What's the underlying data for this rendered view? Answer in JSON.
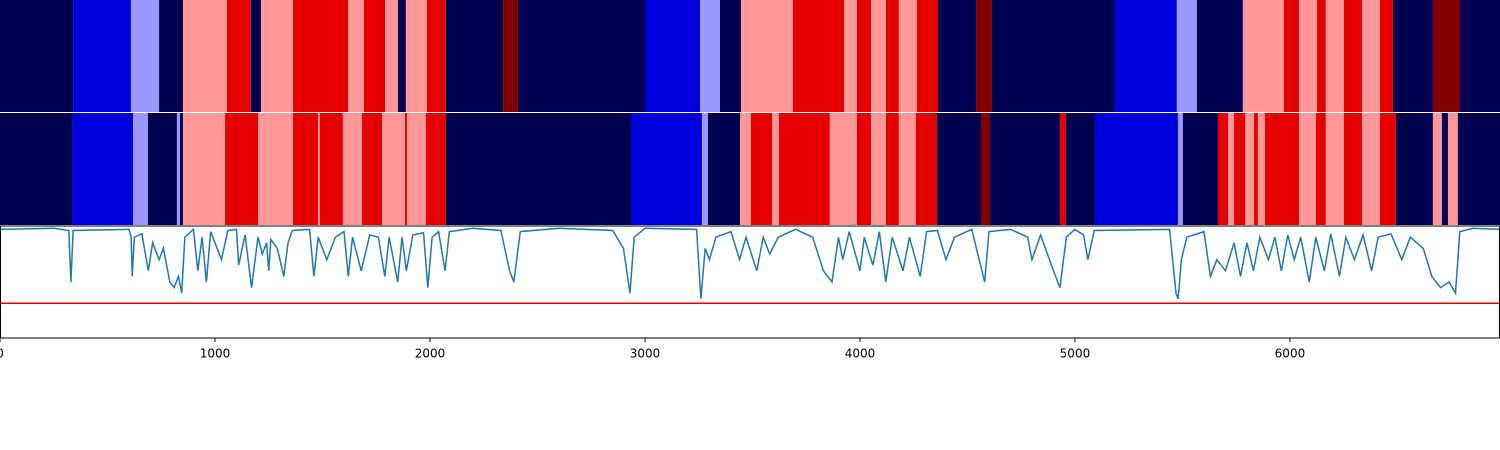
{
  "chart_data": {
    "type": "segmentation",
    "xlim": [
      0,
      6977
    ],
    "xticks": [
      0,
      1000,
      2000,
      3000,
      4000,
      5000,
      6000
    ],
    "state_colors": [
      "#000050",
      "#0000dd",
      "#9999ff",
      "#ff9999",
      "#e50000",
      "#800000"
    ],
    "strips": [
      {
        "boundaries": [
          0,
          340,
          609,
          740,
          851,
          1056,
          1167,
          1214,
          1363,
          1619,
          1693,
          1791,
          1851,
          1888,
          1986,
          2074,
          2340,
          2409,
          3000,
          3256,
          3349,
          3447,
          3688,
          3926,
          3986,
          4051,
          4121,
          4181,
          4265,
          4363,
          4540,
          4614,
          5186,
          5474,
          5567,
          5781,
          5972,
          6042,
          6126,
          6167,
          6251,
          6335,
          6419,
          6479,
          6665,
          6791,
          6977
        ],
        "states": [
          0,
          1,
          2,
          0,
          3,
          4,
          0,
          3,
          4,
          3,
          4,
          3,
          0,
          3,
          4,
          0,
          5,
          0,
          1,
          2,
          0,
          3,
          4,
          3,
          4,
          3,
          4,
          3,
          4,
          0,
          5,
          0,
          1,
          2,
          0,
          3,
          4,
          3,
          4,
          3,
          4,
          3,
          4,
          0,
          5,
          0
        ]
      },
      {
        "boundaries": [
          0,
          335,
          619,
          688,
          823,
          837,
          851,
          1047,
          1200,
          1363,
          1479,
          1488,
          1595,
          1684,
          1777,
          1884,
          1893,
          1981,
          2074,
          2935,
          3265,
          3293,
          3442,
          3493,
          3591,
          3623,
          3860,
          3986,
          4051,
          4121,
          4181,
          4260,
          4358,
          4563,
          4605,
          4930,
          4958,
          5093,
          5479,
          5502,
          5665,
          5712,
          5740,
          5791,
          5833,
          5851,
          5884,
          6042,
          6121,
          6167,
          6251,
          6335,
          6419,
          6493,
          6665,
          6707,
          6735,
          6781,
          6977
        ],
        "states": [
          0,
          1,
          2,
          0,
          2,
          0,
          3,
          4,
          3,
          4,
          3,
          4,
          3,
          4,
          3,
          4,
          3,
          4,
          0,
          1,
          2,
          0,
          3,
          4,
          3,
          4,
          3,
          4,
          3,
          4,
          3,
          4,
          0,
          5,
          0,
          4,
          0,
          1,
          2,
          0,
          4,
          3,
          4,
          3,
          4,
          3,
          4,
          3,
          4,
          3,
          4,
          3,
          4,
          0,
          3,
          0,
          3,
          0
        ]
      }
    ],
    "line": {
      "color": "#1f77b4",
      "ylim": [
        0,
        1
      ],
      "threshold": 0.31,
      "threshold_color": "#e00000",
      "x": [
        0,
        250,
        320,
        330,
        340,
        600,
        610,
        615,
        625,
        660,
        690,
        710,
        740,
        760,
        790,
        810,
        830,
        845,
        860,
        900,
        920,
        940,
        960,
        980,
        1000,
        1030,
        1060,
        1100,
        1110,
        1140,
        1170,
        1200,
        1220,
        1240,
        1250,
        1260,
        1290,
        1320,
        1340,
        1360,
        1440,
        1460,
        1480,
        1520,
        1560,
        1600,
        1620,
        1640,
        1680,
        1720,
        1760,
        1790,
        1810,
        1850,
        1870,
        1890,
        1920,
        1970,
        1990,
        2010,
        2040,
        2070,
        2090,
        2200,
        2330,
        2370,
        2390,
        2420,
        2600,
        2850,
        2900,
        2930,
        2950,
        3000,
        3240,
        3260,
        3280,
        3300,
        3330,
        3400,
        3440,
        3470,
        3520,
        3550,
        3580,
        3620,
        3700,
        3780,
        3830,
        3870,
        3900,
        3920,
        3950,
        4000,
        4020,
        4060,
        4090,
        4120,
        4150,
        4200,
        4230,
        4280,
        4310,
        4360,
        4400,
        4440,
        4520,
        4580,
        4600,
        4700,
        4780,
        4800,
        4840,
        4900,
        4930,
        4960,
        5000,
        5040,
        5060,
        5090,
        5440,
        5470,
        5480,
        5495,
        5520,
        5600,
        5630,
        5660,
        5700,
        5740,
        5770,
        5800,
        5830,
        5860,
        5900,
        5930,
        5960,
        5990,
        6020,
        6050,
        6090,
        6120,
        6160,
        6190,
        6230,
        6260,
        6300,
        6340,
        6380,
        6410,
        6470,
        6520,
        6560,
        6620,
        6660,
        6700,
        6740,
        6770,
        6790,
        6850,
        6977
      ],
      "values": [
        0.97,
        0.98,
        0.96,
        0.5,
        0.96,
        0.97,
        0.9,
        0.55,
        0.9,
        0.93,
        0.6,
        0.85,
        0.7,
        0.8,
        0.5,
        0.45,
        0.55,
        0.4,
        0.9,
        0.97,
        0.6,
        0.9,
        0.5,
        0.95,
        0.85,
        0.7,
        0.96,
        0.97,
        0.65,
        0.92,
        0.45,
        0.9,
        0.75,
        0.85,
        0.6,
        0.88,
        0.8,
        0.55,
        0.85,
        0.96,
        0.97,
        0.55,
        0.9,
        0.7,
        0.9,
        0.95,
        0.55,
        0.9,
        0.6,
        0.92,
        0.9,
        0.55,
        0.9,
        0.5,
        0.9,
        0.6,
        0.92,
        0.94,
        0.45,
        0.9,
        0.95,
        0.6,
        0.95,
        0.98,
        0.96,
        0.6,
        0.5,
        0.95,
        0.98,
        0.96,
        0.8,
        0.4,
        0.9,
        0.98,
        0.97,
        0.35,
        0.8,
        0.7,
        0.9,
        0.95,
        0.7,
        0.9,
        0.6,
        0.9,
        0.75,
        0.9,
        0.97,
        0.9,
        0.6,
        0.5,
        0.9,
        0.7,
        0.95,
        0.6,
        0.9,
        0.65,
        0.95,
        0.5,
        0.9,
        0.6,
        0.9,
        0.55,
        0.95,
        0.96,
        0.7,
        0.9,
        0.97,
        0.5,
        0.95,
        0.97,
        0.9,
        0.7,
        0.92,
        0.6,
        0.45,
        0.9,
        0.97,
        0.92,
        0.7,
        0.96,
        0.97,
        0.4,
        0.35,
        0.7,
        0.9,
        0.95,
        0.55,
        0.7,
        0.6,
        0.85,
        0.55,
        0.85,
        0.6,
        0.9,
        0.7,
        0.9,
        0.6,
        0.92,
        0.7,
        0.9,
        0.5,
        0.9,
        0.6,
        0.93,
        0.55,
        0.9,
        0.7,
        0.92,
        0.6,
        0.9,
        0.93,
        0.7,
        0.9,
        0.8,
        0.55,
        0.45,
        0.5,
        0.4,
        0.95,
        0.98,
        0.97
      ]
    }
  }
}
